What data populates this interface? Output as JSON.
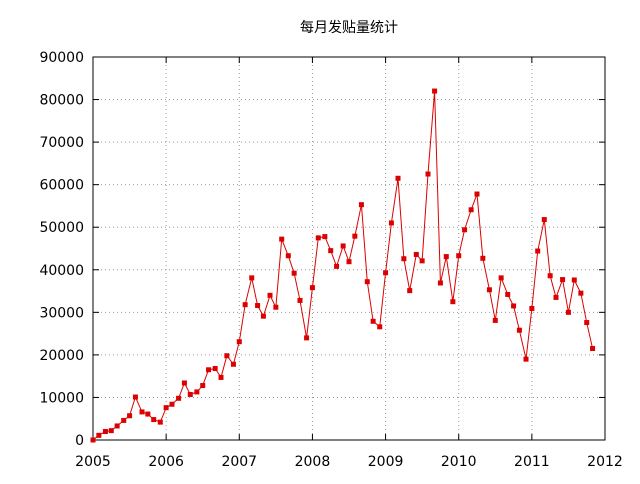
{
  "chart_data": {
    "type": "line",
    "title": "每月发贴量统计",
    "xlabel": "",
    "ylabel": "",
    "xlim": [
      2005,
      2012
    ],
    "ylim": [
      0,
      90000
    ],
    "x_ticks": [
      "2005",
      "2006",
      "2007",
      "2008",
      "2009",
      "2010",
      "2011",
      "2012"
    ],
    "y_ticks": [
      "0",
      "10000",
      "20000",
      "30000",
      "40000",
      "50000",
      "60000",
      "70000",
      "80000",
      "90000"
    ],
    "grid": true,
    "legend": false,
    "colors": {
      "series": "#dd0000",
      "grid": "#999999",
      "axis": "#000000"
    },
    "series": [
      {
        "name": "",
        "points": [
          [
            2005.0,
            0
          ],
          [
            2005.08,
            1100
          ],
          [
            2005.17,
            2000
          ],
          [
            2005.25,
            2200
          ],
          [
            2005.33,
            3300
          ],
          [
            2005.42,
            4600
          ],
          [
            2005.5,
            5700
          ],
          [
            2005.58,
            10100
          ],
          [
            2005.67,
            6600
          ],
          [
            2005.75,
            6100
          ],
          [
            2005.83,
            4800
          ],
          [
            2005.92,
            4200
          ],
          [
            2006.0,
            7600
          ],
          [
            2006.08,
            8400
          ],
          [
            2006.17,
            9800
          ],
          [
            2006.25,
            13400
          ],
          [
            2006.33,
            10700
          ],
          [
            2006.42,
            11300
          ],
          [
            2006.5,
            12800
          ],
          [
            2006.58,
            16500
          ],
          [
            2006.67,
            16800
          ],
          [
            2006.75,
            14700
          ],
          [
            2006.83,
            19800
          ],
          [
            2006.92,
            17800
          ],
          [
            2007.0,
            23100
          ],
          [
            2007.08,
            31800
          ],
          [
            2007.17,
            38100
          ],
          [
            2007.25,
            31600
          ],
          [
            2007.33,
            29100
          ],
          [
            2007.42,
            34000
          ],
          [
            2007.5,
            31200
          ],
          [
            2007.58,
            47200
          ],
          [
            2007.67,
            43300
          ],
          [
            2007.75,
            39200
          ],
          [
            2007.83,
            32800
          ],
          [
            2007.92,
            24000
          ],
          [
            2008.0,
            35800
          ],
          [
            2008.08,
            47500
          ],
          [
            2008.17,
            47800
          ],
          [
            2008.25,
            44500
          ],
          [
            2008.33,
            40800
          ],
          [
            2008.42,
            45600
          ],
          [
            2008.5,
            41900
          ],
          [
            2008.58,
            47900
          ],
          [
            2008.67,
            55300
          ],
          [
            2008.75,
            37200
          ],
          [
            2008.83,
            27900
          ],
          [
            2008.92,
            26600
          ],
          [
            2009.0,
            39300
          ],
          [
            2009.08,
            51000
          ],
          [
            2009.17,
            61500
          ],
          [
            2009.25,
            42600
          ],
          [
            2009.33,
            35100
          ],
          [
            2009.42,
            43600
          ],
          [
            2009.5,
            42100
          ],
          [
            2009.58,
            62500
          ],
          [
            2009.67,
            82000
          ],
          [
            2009.75,
            36900
          ],
          [
            2009.83,
            43100
          ],
          [
            2009.92,
            32500
          ],
          [
            2010.0,
            43300
          ],
          [
            2010.08,
            49400
          ],
          [
            2010.17,
            54100
          ],
          [
            2010.25,
            57800
          ],
          [
            2010.33,
            42700
          ],
          [
            2010.42,
            35300
          ],
          [
            2010.5,
            28100
          ],
          [
            2010.58,
            38100
          ],
          [
            2010.67,
            34200
          ],
          [
            2010.75,
            31500
          ],
          [
            2010.83,
            25800
          ],
          [
            2010.92,
            19000
          ],
          [
            2011.0,
            30900
          ],
          [
            2011.08,
            44400
          ],
          [
            2011.17,
            51800
          ],
          [
            2011.25,
            38600
          ],
          [
            2011.33,
            33500
          ],
          [
            2011.42,
            37700
          ],
          [
            2011.5,
            30000
          ],
          [
            2011.58,
            37600
          ],
          [
            2011.67,
            34500
          ],
          [
            2011.75,
            27600
          ],
          [
            2011.83,
            21500
          ]
        ]
      }
    ]
  }
}
